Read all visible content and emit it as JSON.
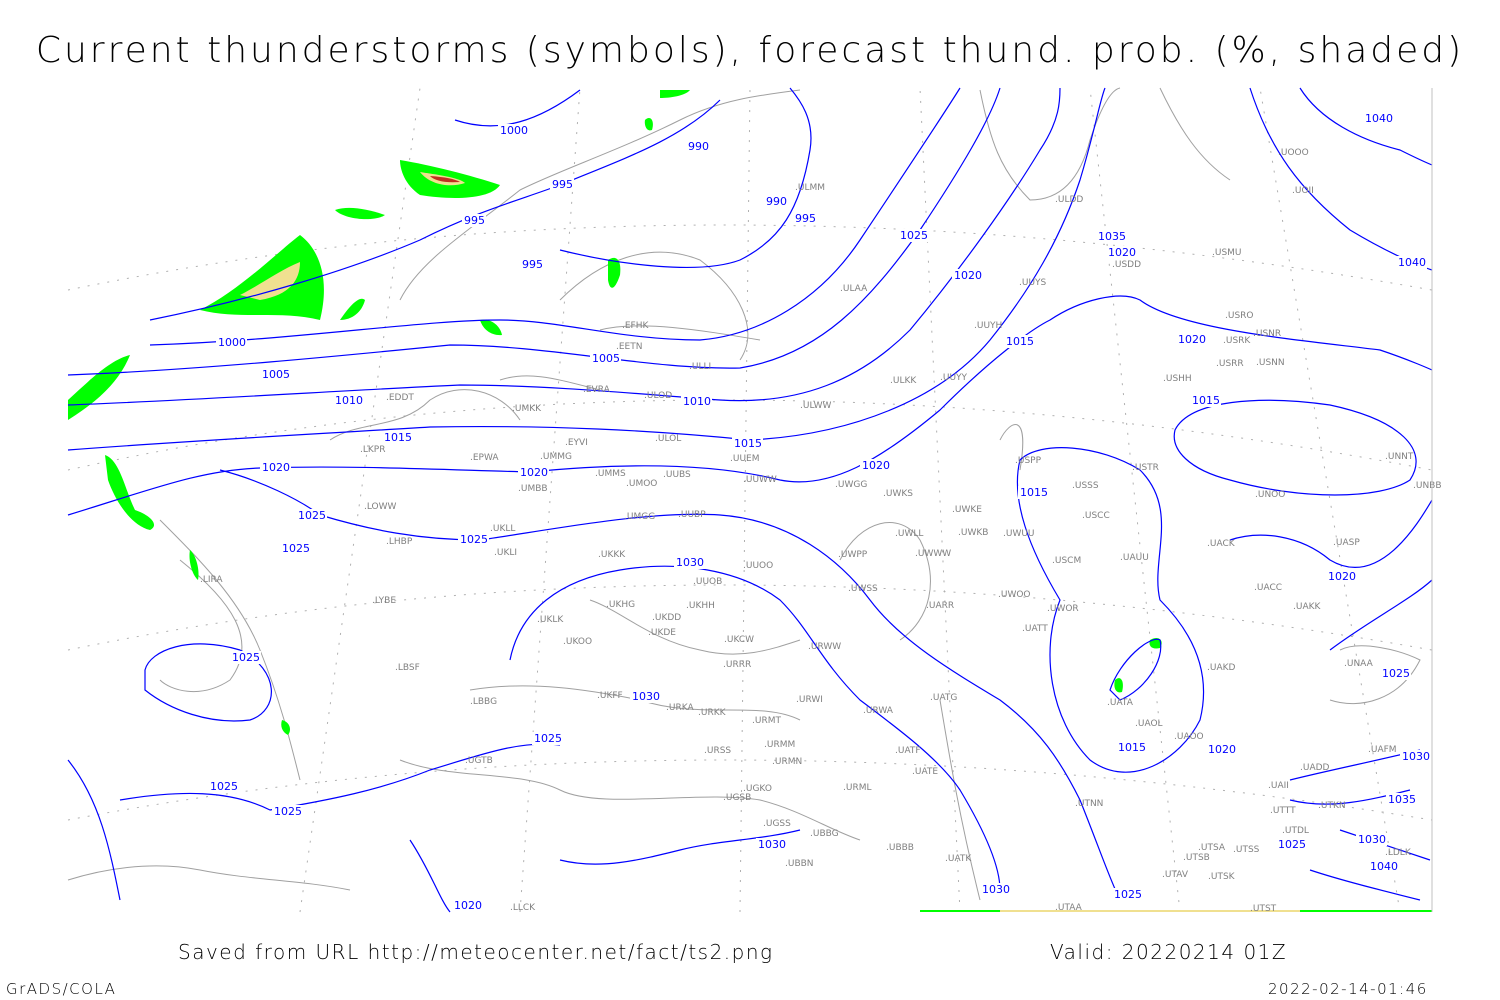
{
  "title": "Current thunderstorms (symbols), forecast thund. prob. (%, shaded)",
  "footer": {
    "saved": "Saved from URL http://meteocenter.net/fact/ts2.png",
    "valid": "Valid: 20220214 01Z",
    "software": "GrADS/COLA",
    "timestamp": "2022-02-14-01:46"
  },
  "colors": {
    "isobar": "#0000ff",
    "coastline": "#a0a0a0",
    "prob_low": "#00ff00",
    "prob_mid": "#f0e090",
    "prob_high": "#c03020"
  },
  "isobar_labels": [
    "1000",
    "995",
    "995",
    "995",
    "990",
    "990",
    "995",
    "1000",
    "1005",
    "1005",
    "1010",
    "1010",
    "1015",
    "1015",
    "1020",
    "1020",
    "1020",
    "1025",
    "1025",
    "1025",
    "1030",
    "1030",
    "1025",
    "1025",
    "1025",
    "1025",
    "1020",
    "1020",
    "1015",
    "1015",
    "1020",
    "1025",
    "1030",
    "1025",
    "1020",
    "1030",
    "1035",
    "1040",
    "1040",
    "1025",
    "1020",
    "1015",
    "1015",
    "1020",
    "1025",
    "1030",
    "1035",
    "1040",
    "1030"
  ],
  "stations": [
    "EFHK",
    "EETN",
    "ULLI",
    "EVRA",
    "ULOD",
    "ULWW",
    "EDDT",
    "UMKK",
    "EYVI",
    "ULOL",
    "UUEM",
    "EPWA",
    "UMMG",
    "LKPR",
    "UMMS",
    "UMOO",
    "UUBS",
    "UUWW",
    "UWGG",
    "UMBB",
    "LOWW",
    "UKLL",
    "UMGG",
    "UUBP",
    "UWKS",
    "UWKE",
    "UWKB",
    "UWUU",
    "LHBP",
    "UKLI",
    "UKKK",
    "UUOO",
    "UUOB",
    "UWPP",
    "UWWW",
    "UWLL",
    "UWSS",
    "LYBE",
    "UKHG",
    "UKDD",
    "UKHH",
    "UKDE",
    "UKOO",
    "UKCW",
    "UKLK",
    "LIRA",
    "LBSF",
    "LBBG",
    "URRR",
    "URWW",
    "UKFF",
    "URKA",
    "URKK",
    "URWI",
    "URMT",
    "URMM",
    "URMN",
    "URSS",
    "UGKO",
    "UGSB",
    "UGTB",
    "UBBG",
    "UBBN",
    "UGSS",
    "URML",
    "UBBB",
    "UATG",
    "URWA",
    "UATE",
    "UATT",
    "UATK",
    "UWOO",
    "UWOR",
    "UASP",
    "UNAA",
    "UAKK",
    "UACC",
    "UACK",
    "UAOO",
    "UAOL",
    "UATA",
    "UAKD",
    "UADD",
    "UAFM",
    "UAII",
    "UTTT",
    "UTKN",
    "UTDL",
    "UTSA",
    "UTSS",
    "UTSB",
    "UTAV",
    "UTSK",
    "UTST",
    "UTAA",
    "UTNN",
    "LLCK",
    "UNOO",
    "UNNT",
    "UNBB",
    "USSS",
    "USCC",
    "USCM",
    "UAUU",
    "USTR",
    "USPP",
    "USHH",
    "USRR",
    "USNN",
    "USRK",
    "USNR",
    "USRO",
    "USMU",
    "USDD",
    "ULDD",
    "UUYY",
    "UUYS",
    "UUYH",
    "ULKK",
    "ULAA",
    "ULMM",
    "UOOO",
    "UOII",
    "LDLK",
    "UATF",
    "UARR"
  ]
}
